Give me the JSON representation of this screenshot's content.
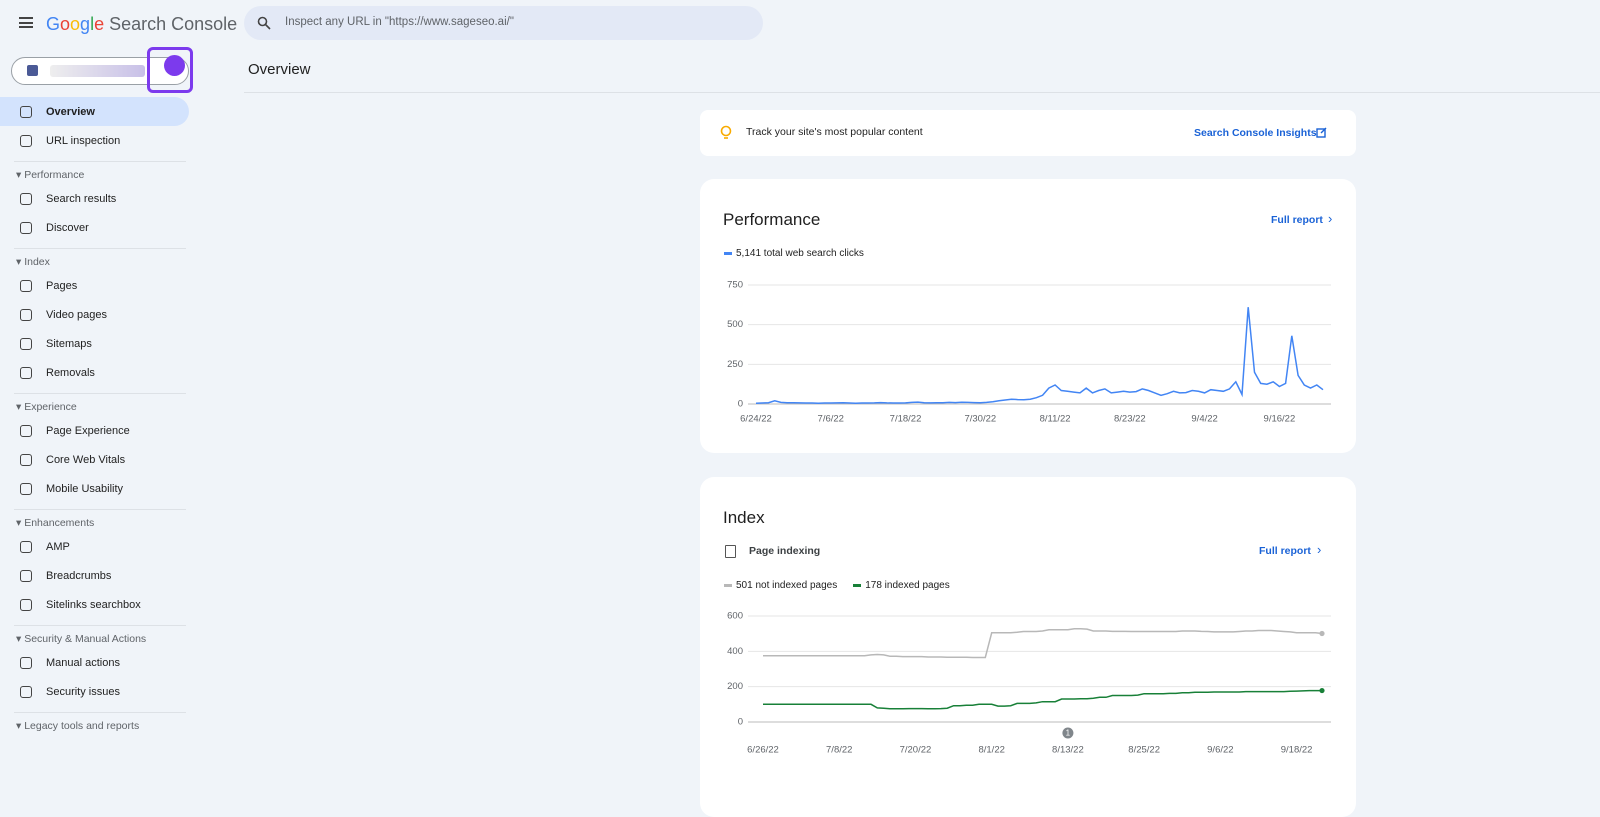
{
  "header": {
    "logo": "Google",
    "product": "Search Console",
    "search_placeholder": "Inspect any URL in \"https://www.sageseo.ai/\""
  },
  "sidebar": {
    "nav": [
      "Overview",
      "URL inspection"
    ],
    "sections": [
      {
        "title": "Performance",
        "items": [
          "Search results",
          "Discover"
        ]
      },
      {
        "title": "Index",
        "items": [
          "Pages",
          "Video pages",
          "Sitemaps",
          "Removals"
        ]
      },
      {
        "title": "Experience",
        "items": [
          "Page Experience",
          "Core Web Vitals",
          "Mobile Usability"
        ]
      },
      {
        "title": "Enhancements",
        "items": [
          "AMP",
          "Breadcrumbs",
          "Sitelinks searchbox"
        ]
      },
      {
        "title": "Security & Manual Actions",
        "items": [
          "Manual actions",
          "Security issues"
        ]
      },
      {
        "title": "Legacy tools and reports",
        "items": []
      }
    ]
  },
  "main": {
    "title": "Overview",
    "insight": {
      "text": "Track your site's most popular content",
      "link": "Search Console Insights"
    },
    "performance": {
      "title": "Performance",
      "link": "Full report",
      "chart": {
        "type": "line",
        "categories": [
          "6/24/22",
          null,
          null,
          null,
          null,
          null,
          null,
          null,
          null,
          null,
          null,
          null,
          "7/6/22",
          null,
          null,
          null,
          null,
          null,
          null,
          null,
          null,
          null,
          null,
          null,
          "7/18/22",
          null,
          null,
          null,
          null,
          null,
          null,
          null,
          null,
          null,
          null,
          null,
          "7/30/22",
          null,
          null,
          null,
          null,
          null,
          null,
          null,
          null,
          null,
          null,
          null,
          "8/11/22",
          null,
          null,
          null,
          null,
          null,
          null,
          null,
          null,
          null,
          null,
          null,
          "8/23/22",
          null,
          null,
          null,
          null,
          null,
          null,
          null,
          null,
          null,
          null,
          null,
          "9/4/22",
          null,
          null,
          null,
          null,
          null,
          null,
          null,
          null,
          null,
          null,
          null,
          "9/16/22",
          null,
          null,
          null,
          null,
          null,
          null,
          null
        ],
        "series": [
          {
            "name": "5,141 total web search clicks",
            "color": "#4285f4",
            "values": [
              5,
              6,
              8,
              20,
              10,
              8,
              8,
              7,
              6,
              6,
              5,
              6,
              6,
              7,
              8,
              6,
              5,
              6,
              6,
              7,
              9,
              7,
              6,
              6,
              7,
              10,
              12,
              8,
              7,
              8,
              8,
              10,
              9,
              11,
              10,
              9,
              8,
              10,
              14,
              20,
              25,
              30,
              28,
              27,
              30,
              40,
              55,
              100,
              120,
              85,
              80,
              75,
              70,
              100,
              70,
              85,
              95,
              70,
              75,
              80,
              75,
              78,
              95,
              85,
              70,
              55,
              65,
              80,
              70,
              72,
              85,
              80,
              70,
              90,
              85,
              80,
              95,
              140,
              60,
              610,
              200,
              130,
              125,
              140,
              110,
              130,
              430,
              180,
              120,
              100,
              120,
              90
            ]
          }
        ],
        "ylim": [
          0,
          750
        ],
        "yticks": [
          0,
          250,
          500,
          750
        ],
        "grid": true
      }
    },
    "index": {
      "title": "Index",
      "subtitle": "Page indexing",
      "link": "Full report",
      "chart": {
        "type": "line",
        "categories": [
          "6/26/22",
          null,
          null,
          null,
          null,
          null,
          null,
          null,
          null,
          null,
          null,
          null,
          "7/8/22",
          null,
          null,
          null,
          null,
          null,
          null,
          null,
          null,
          null,
          null,
          null,
          "7/20/22",
          null,
          null,
          null,
          null,
          null,
          null,
          null,
          null,
          null,
          null,
          null,
          "8/1/22",
          null,
          null,
          null,
          null,
          null,
          null,
          null,
          null,
          null,
          null,
          null,
          "8/13/22",
          null,
          null,
          null,
          null,
          null,
          null,
          null,
          null,
          null,
          null,
          null,
          "8/25/22",
          null,
          null,
          null,
          null,
          null,
          null,
          null,
          null,
          null,
          null,
          null,
          "9/6/22",
          null,
          null,
          null,
          null,
          null,
          null,
          null,
          null,
          null,
          null,
          null,
          "9/18/22",
          null,
          null,
          null,
          null
        ],
        "series": [
          {
            "name": "501 not indexed pages",
            "color": "#b8b8b8",
            "values": [
              375,
              375,
              375,
              375,
              375,
              375,
              375,
              375,
              375,
              375,
              375,
              375,
              375,
              375,
              375,
              375,
              375,
              380,
              382,
              380,
              372,
              372,
              370,
              370,
              370,
              370,
              368,
              368,
              368,
              367,
              367,
              366,
              366,
              365,
              365,
              365,
              505,
              505,
              505,
              505,
              508,
              512,
              512,
              512,
              515,
              522,
              522,
              522,
              522,
              528,
              528,
              526,
              515,
              515,
              515,
              513,
              513,
              513,
              512,
              512,
              512,
              512,
              512,
              512,
              512,
              512,
              515,
              515,
              515,
              513,
              512,
              510,
              510,
              510,
              510,
              512,
              515,
              515,
              518,
              518,
              518,
              515,
              512,
              510,
              505,
              505,
              505,
              505,
              501
            ]
          },
          {
            "name": "178 indexed pages",
            "color": "#188038",
            "values": [
              100,
              100,
              100,
              100,
              100,
              100,
              100,
              100,
              100,
              100,
              100,
              100,
              100,
              100,
              100,
              100,
              100,
              100,
              80,
              78,
              75,
              75,
              75,
              76,
              76,
              76,
              75,
              75,
              76,
              78,
              92,
              92,
              95,
              95,
              100,
              100,
              100,
              90,
              90,
              92,
              105,
              105,
              105,
              108,
              115,
              115,
              115,
              130,
              130,
              130,
              132,
              132,
              135,
              140,
              140,
              150,
              150,
              150,
              150,
              152,
              160,
              160,
              160,
              160,
              162,
              162,
              165,
              165,
              168,
              168,
              168,
              170,
              170,
              170,
              170,
              170,
              172,
              172,
              172,
              172,
              172,
              172,
              172,
              174,
              175,
              176,
              178,
              178,
              178
            ]
          }
        ],
        "ylim": [
          0,
          600
        ],
        "yticks": [
          0,
          200,
          400,
          600
        ],
        "grid": true,
        "annotation": "1"
      }
    }
  }
}
